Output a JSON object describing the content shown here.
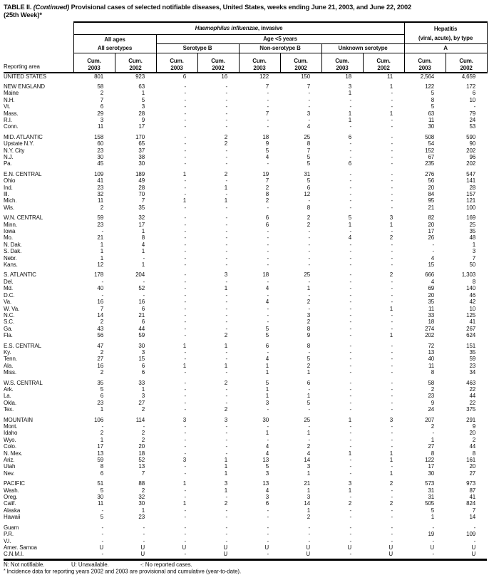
{
  "title": {
    "prefix": "TABLE II. ",
    "continued": "(Continued)",
    "rest": " Provisional cases of selected notifiable diseases, United States, weeks ending June 21, 2003, and June 22, 2002",
    "week": "(25th Week)*"
  },
  "header": {
    "reporting_area": "Reporting area",
    "hib_italic": "Haemophilus influenzae",
    "hib_rest": ", invasive",
    "hepatitis_line1": "Hepatitis",
    "hepatitis_line2": "(viral, acute), by type",
    "all_ages": "All ages",
    "age_under5": "Age <5 years",
    "groups": [
      "All serotypes",
      "Serotype B",
      "Non-serotype B",
      "Unknown serotype",
      "A"
    ],
    "cum": "Cum.",
    "years": [
      "2003",
      "2002"
    ]
  },
  "sections": [
    {
      "rows": [
        {
          "a": "UNITED STATES",
          "v": [
            "801",
            "923",
            "6",
            "16",
            "122",
            "150",
            "18",
            "11",
            "2,564",
            "4,659"
          ]
        }
      ]
    },
    {
      "rows": [
        {
          "a": "NEW ENGLAND",
          "v": [
            "58",
            "63",
            "-",
            "-",
            "7",
            "7",
            "3",
            "1",
            "122",
            "172"
          ]
        },
        {
          "a": "Maine",
          "v": [
            "2",
            "1",
            "-",
            "-",
            "-",
            "-",
            "1",
            "-",
            "5",
            "6"
          ]
        },
        {
          "a": "N.H.",
          "v": [
            "7",
            "5",
            "-",
            "-",
            "-",
            "-",
            "-",
            "-",
            "8",
            "10"
          ]
        },
        {
          "a": "Vt.",
          "v": [
            "6",
            "3",
            "-",
            "-",
            "-",
            "-",
            "-",
            "-",
            "5",
            "-"
          ]
        },
        {
          "a": "Mass.",
          "v": [
            "29",
            "28",
            "-",
            "-",
            "7",
            "3",
            "1",
            "1",
            "63",
            "79"
          ]
        },
        {
          "a": "R.I.",
          "v": [
            "3",
            "9",
            "-",
            "-",
            "-",
            "-",
            "1",
            "-",
            "11",
            "24"
          ]
        },
        {
          "a": "Conn.",
          "v": [
            "11",
            "17",
            "-",
            "-",
            "-",
            "4",
            "-",
            "-",
            "30",
            "53"
          ]
        }
      ]
    },
    {
      "rows": [
        {
          "a": "MID. ATLANTIC",
          "v": [
            "158",
            "170",
            "-",
            "2",
            "18",
            "25",
            "6",
            "-",
            "508",
            "590"
          ]
        },
        {
          "a": "Upstate N.Y.",
          "v": [
            "60",
            "65",
            "-",
            "2",
            "9",
            "8",
            "-",
            "-",
            "54",
            "90"
          ]
        },
        {
          "a": "N.Y. City",
          "v": [
            "23",
            "37",
            "-",
            "-",
            "5",
            "7",
            "-",
            "-",
            "152",
            "202"
          ]
        },
        {
          "a": "N.J.",
          "v": [
            "30",
            "38",
            "-",
            "-",
            "4",
            "5",
            "-",
            "-",
            "67",
            "96"
          ]
        },
        {
          "a": "Pa.",
          "v": [
            "45",
            "30",
            "-",
            "-",
            "-",
            "5",
            "6",
            "-",
            "235",
            "202"
          ]
        }
      ]
    },
    {
      "rows": [
        {
          "a": "E.N. CENTRAL",
          "v": [
            "109",
            "189",
            "1",
            "2",
            "19",
            "31",
            "-",
            "-",
            "276",
            "547"
          ]
        },
        {
          "a": "Ohio",
          "v": [
            "41",
            "49",
            "-",
            "-",
            "7",
            "5",
            "-",
            "-",
            "56",
            "141"
          ]
        },
        {
          "a": "Ind.",
          "v": [
            "23",
            "28",
            "-",
            "1",
            "2",
            "6",
            "-",
            "-",
            "20",
            "28"
          ]
        },
        {
          "a": "Ill.",
          "v": [
            "32",
            "70",
            "-",
            "-",
            "8",
            "12",
            "-",
            "-",
            "84",
            "157"
          ]
        },
        {
          "a": "Mich.",
          "v": [
            "11",
            "7",
            "1",
            "1",
            "2",
            "-",
            "-",
            "-",
            "95",
            "121"
          ]
        },
        {
          "a": "Wis.",
          "v": [
            "2",
            "35",
            "-",
            "-",
            "-",
            "8",
            "-",
            "-",
            "21",
            "100"
          ]
        }
      ]
    },
    {
      "rows": [
        {
          "a": "W.N. CENTRAL",
          "v": [
            "59",
            "32",
            "-",
            "-",
            "6",
            "2",
            "5",
            "3",
            "82",
            "169"
          ]
        },
        {
          "a": "Minn.",
          "v": [
            "23",
            "17",
            "-",
            "-",
            "6",
            "2",
            "1",
            "1",
            "20",
            "25"
          ]
        },
        {
          "a": "Iowa",
          "v": [
            "-",
            "1",
            "-",
            "-",
            "-",
            "-",
            "-",
            "-",
            "17",
            "35"
          ]
        },
        {
          "a": "Mo.",
          "v": [
            "21",
            "8",
            "-",
            "-",
            "-",
            "-",
            "4",
            "2",
            "26",
            "48"
          ]
        },
        {
          "a": "N. Dak.",
          "v": [
            "1",
            "4",
            "-",
            "-",
            "-",
            "-",
            "-",
            "-",
            "-",
            "1"
          ]
        },
        {
          "a": "S. Dak.",
          "v": [
            "1",
            "1",
            "-",
            "-",
            "-",
            "-",
            "-",
            "-",
            "-",
            "3"
          ]
        },
        {
          "a": "Nebr.",
          "v": [
            "1",
            "-",
            "-",
            "-",
            "-",
            "-",
            "-",
            "-",
            "4",
            "7"
          ]
        },
        {
          "a": "Kans.",
          "v": [
            "12",
            "1",
            "-",
            "-",
            "-",
            "-",
            "-",
            "-",
            "15",
            "50"
          ]
        }
      ]
    },
    {
      "rows": [
        {
          "a": "S. ATLANTIC",
          "v": [
            "178",
            "204",
            "-",
            "3",
            "18",
            "25",
            "-",
            "2",
            "666",
            "1,303"
          ]
        },
        {
          "a": "Del.",
          "v": [
            "-",
            "-",
            "-",
            "-",
            "-",
            "-",
            "-",
            "-",
            "4",
            "8"
          ]
        },
        {
          "a": "Md.",
          "v": [
            "40",
            "52",
            "-",
            "1",
            "4",
            "1",
            "-",
            "-",
            "69",
            "140"
          ]
        },
        {
          "a": "D.C.",
          "v": [
            "-",
            "-",
            "-",
            "-",
            "-",
            "-",
            "-",
            "-",
            "20",
            "46"
          ]
        },
        {
          "a": "Va.",
          "v": [
            "16",
            "16",
            "-",
            "-",
            "4",
            "2",
            "-",
            "-",
            "35",
            "42"
          ]
        },
        {
          "a": "W. Va.",
          "v": [
            "7",
            "6",
            "-",
            "-",
            "-",
            "-",
            "-",
            "1",
            "11",
            "10"
          ]
        },
        {
          "a": "N.C.",
          "v": [
            "14",
            "21",
            "-",
            "-",
            "-",
            "3",
            "-",
            "-",
            "33",
            "125"
          ]
        },
        {
          "a": "S.C.",
          "v": [
            "2",
            "6",
            "-",
            "-",
            "-",
            "2",
            "-",
            "-",
            "18",
            "41"
          ]
        },
        {
          "a": "Ga.",
          "v": [
            "43",
            "44",
            "-",
            "-",
            "5",
            "8",
            "-",
            "-",
            "274",
            "267"
          ]
        },
        {
          "a": "Fla.",
          "v": [
            "56",
            "59",
            "-",
            "2",
            "5",
            "9",
            "-",
            "1",
            "202",
            "624"
          ]
        }
      ]
    },
    {
      "rows": [
        {
          "a": "E.S. CENTRAL",
          "v": [
            "47",
            "30",
            "1",
            "1",
            "6",
            "8",
            "-",
            "-",
            "72",
            "151"
          ]
        },
        {
          "a": "Ky.",
          "v": [
            "2",
            "3",
            "-",
            "-",
            "-",
            "-",
            "-",
            "-",
            "13",
            "35"
          ]
        },
        {
          "a": "Tenn.",
          "v": [
            "27",
            "15",
            "-",
            "-",
            "4",
            "5",
            "-",
            "-",
            "40",
            "59"
          ]
        },
        {
          "a": "Ala.",
          "v": [
            "16",
            "6",
            "1",
            "1",
            "1",
            "2",
            "-",
            "-",
            "11",
            "23"
          ]
        },
        {
          "a": "Miss.",
          "v": [
            "2",
            "6",
            "-",
            "-",
            "1",
            "1",
            "-",
            "-",
            "8",
            "34"
          ]
        }
      ]
    },
    {
      "rows": [
        {
          "a": "W.S. CENTRAL",
          "v": [
            "35",
            "33",
            "-",
            "2",
            "5",
            "6",
            "-",
            "-",
            "58",
            "463"
          ]
        },
        {
          "a": "Ark.",
          "v": [
            "5",
            "1",
            "-",
            "-",
            "1",
            "-",
            "-",
            "-",
            "2",
            "22"
          ]
        },
        {
          "a": "La.",
          "v": [
            "6",
            "3",
            "-",
            "-",
            "1",
            "1",
            "-",
            "-",
            "23",
            "44"
          ]
        },
        {
          "a": "Okla.",
          "v": [
            "23",
            "27",
            "-",
            "-",
            "3",
            "5",
            "-",
            "-",
            "9",
            "22"
          ]
        },
        {
          "a": "Tex.",
          "v": [
            "1",
            "2",
            "-",
            "2",
            "-",
            "-",
            "-",
            "-",
            "24",
            "375"
          ]
        }
      ]
    },
    {
      "rows": [
        {
          "a": "MOUNTAIN",
          "v": [
            "106",
            "114",
            "3",
            "3",
            "30",
            "25",
            "1",
            "3",
            "207",
            "291"
          ]
        },
        {
          "a": "Mont.",
          "v": [
            "-",
            "-",
            "-",
            "-",
            "-",
            "-",
            "-",
            "-",
            "2",
            "9"
          ]
        },
        {
          "a": "Idaho",
          "v": [
            "2",
            "2",
            "-",
            "-",
            "1",
            "1",
            "-",
            "-",
            "-",
            "20"
          ]
        },
        {
          "a": "Wyo.",
          "v": [
            "1",
            "2",
            "-",
            "-",
            "-",
            "-",
            "-",
            "-",
            "1",
            "2"
          ]
        },
        {
          "a": "Colo.",
          "v": [
            "17",
            "20",
            "-",
            "-",
            "4",
            "2",
            "-",
            "-",
            "27",
            "44"
          ]
        },
        {
          "a": "N. Mex.",
          "v": [
            "13",
            "18",
            "-",
            "-",
            "4",
            "4",
            "1",
            "1",
            "8",
            "8"
          ]
        },
        {
          "a": "Ariz.",
          "v": [
            "59",
            "52",
            "3",
            "1",
            "13",
            "14",
            "-",
            "1",
            "122",
            "161"
          ]
        },
        {
          "a": "Utah",
          "v": [
            "8",
            "13",
            "-",
            "1",
            "5",
            "3",
            "-",
            "-",
            "17",
            "20"
          ]
        },
        {
          "a": "Nev.",
          "v": [
            "6",
            "7",
            "-",
            "1",
            "3",
            "1",
            "-",
            "1",
            "30",
            "27"
          ]
        }
      ]
    },
    {
      "rows": [
        {
          "a": "PACIFIC",
          "v": [
            "51",
            "88",
            "1",
            "3",
            "13",
            "21",
            "3",
            "2",
            "573",
            "973"
          ]
        },
        {
          "a": "Wash.",
          "v": [
            "5",
            "2",
            "-",
            "1",
            "4",
            "1",
            "1",
            "-",
            "31",
            "87"
          ]
        },
        {
          "a": "Oreg.",
          "v": [
            "30",
            "32",
            "-",
            "-",
            "3",
            "3",
            "-",
            "-",
            "31",
            "41"
          ]
        },
        {
          "a": "Calif.",
          "v": [
            "11",
            "30",
            "1",
            "2",
            "6",
            "14",
            "2",
            "2",
            "505",
            "824"
          ]
        },
        {
          "a": "Alaska",
          "v": [
            "-",
            "1",
            "-",
            "-",
            "-",
            "1",
            "-",
            "-",
            "5",
            "7"
          ]
        },
        {
          "a": "Hawaii",
          "v": [
            "5",
            "23",
            "-",
            "-",
            "-",
            "2",
            "-",
            "-",
            "1",
            "14"
          ]
        }
      ]
    },
    {
      "rows": [
        {
          "a": "Guam",
          "v": [
            "-",
            "-",
            "-",
            "-",
            "-",
            "-",
            "-",
            "-",
            "-",
            "-"
          ]
        },
        {
          "a": "P.R.",
          "v": [
            "-",
            "-",
            "-",
            "-",
            "-",
            "-",
            "-",
            "-",
            "19",
            "109"
          ]
        },
        {
          "a": "V.I.",
          "v": [
            "-",
            "-",
            "-",
            "-",
            "-",
            "-",
            "-",
            "-",
            "-",
            "-"
          ]
        },
        {
          "a": "Amer. Samoa",
          "v": [
            "U",
            "U",
            "U",
            "U",
            "U",
            "U",
            "U",
            "U",
            "U",
            "U"
          ]
        },
        {
          "a": "C.N.M.I.",
          "v": [
            "-",
            "U",
            "-",
            "U",
            "-",
            "U",
            "-",
            "U",
            "-",
            "U"
          ]
        }
      ]
    }
  ],
  "footnotes": {
    "seg1": "N: Not notifiable.",
    "seg2": "U: Unavailable.",
    "seg3": "-: No reported cases.",
    "star": "*",
    "note2": "Incidence data for reporting years 2002 and 2003 are provisional and cumulative (year-to-date)."
  }
}
